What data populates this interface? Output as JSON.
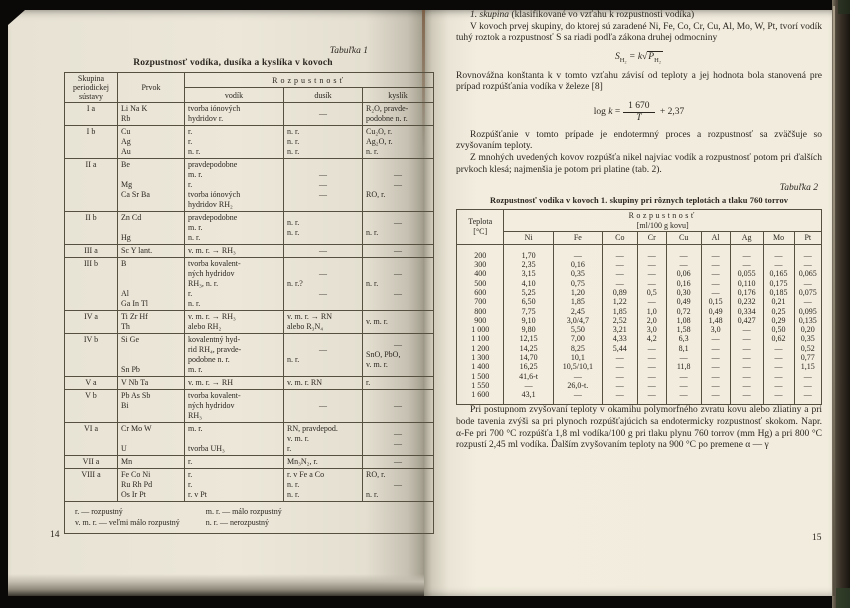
{
  "colors": {
    "paper": "#ece7d9",
    "ink": "#2b2620",
    "frame": "#0a0908"
  },
  "book": {
    "left_page": {
      "table_label": "Tabuľka 1",
      "title": "Rozpustnosť vodíka, dusíka a kyslíka v kovoch",
      "table1": {
        "header_group": "Skupina periodickej sústavy",
        "header_element": "Prvok",
        "header_solubility": "Rozpustnosť",
        "subheaders": [
          "vodík",
          "dusík",
          "kyslík"
        ],
        "rows": [
          {
            "group": "I a",
            "prvok": [
              "Li Na K",
              "Rb"
            ],
            "vodik": [
              "tvorba iónových",
              "hydridov r."
            ],
            "dusik": [
              "—"
            ],
            "kyslik": [
              "R₂O, pravde-",
              "podobne n. r."
            ]
          },
          {
            "group": "I b",
            "prvok": [
              "Cu",
              "Ag",
              "Au"
            ],
            "vodik": [
              "r.",
              "r.",
              "n. r."
            ],
            "dusik": [
              "n. r.",
              "n. r.",
              "n. r."
            ],
            "kyslik": [
              "Cu₂O, r.",
              "Ag₂O, r.",
              "n. r."
            ]
          },
          {
            "group": "II a",
            "prvok": [
              "Be",
              "",
              "Mg",
              "Ca Sr Ba"
            ],
            "vodik": [
              "pravdepodobne",
              "m. r.",
              "r.",
              "tvorba iónových",
              "hydridov RH₂"
            ],
            "dusik": [
              "—",
              "—",
              "—"
            ],
            "kyslik": [
              "—",
              "—",
              "RO, r."
            ]
          },
          {
            "group": "II b",
            "prvok": [
              "Zn Cd",
              "",
              "Hg"
            ],
            "vodik": [
              "pravdepodobne",
              "m. r.",
              "n. r."
            ],
            "dusik": [
              "n. r.",
              "n. r."
            ],
            "kyslik": [
              "—",
              "n. r."
            ]
          },
          {
            "group": "III a",
            "prvok": [
              "Sc Y lant."
            ],
            "vodik": [
              "v. m. r. → RH₃"
            ],
            "dusik": [
              "—"
            ],
            "kyslik": [
              "—"
            ]
          },
          {
            "group": "III b",
            "prvok": [
              "B",
              "",
              "",
              "Al",
              "Ga In Tl"
            ],
            "vodik": [
              "tvorba kovalent-",
              "ných hydridov",
              "RH₃, n. r.",
              "r.",
              "n. r."
            ],
            "dusik": [
              "—",
              "n. r.?",
              "—"
            ],
            "kyslik": [
              "—",
              "n. r.",
              "—"
            ]
          },
          {
            "group": "IV a",
            "prvok": [
              "Ti Zr Hf",
              "Th"
            ],
            "vodik": [
              "v. m. r. → RH₃",
              "alebo RH₂"
            ],
            "dusik": [
              "v. m. r. → RN",
              "alebo R₃N₄"
            ],
            "kyslik": [
              "v. m. r."
            ]
          },
          {
            "group": "IV b",
            "prvok": [
              "Si Ge",
              "",
              "",
              "Sn Pb"
            ],
            "vodik": [
              "kovalentný hyd-",
              "rid RH₄, pravde-",
              "podobne n. r.",
              "m. r."
            ],
            "dusik": [
              "—",
              "n. r."
            ],
            "kyslik": [
              "—",
              "SnO, PbO,",
              "v. m. r."
            ]
          },
          {
            "group": "V a",
            "prvok": [
              "V Nb Ta"
            ],
            "vodik": [
              "v. m. r. → RH"
            ],
            "dusik": [
              "v. m. r. RN"
            ],
            "kyslik": [
              "r."
            ]
          },
          {
            "group": "V b",
            "prvok": [
              "Pb As Sb",
              "Bi"
            ],
            "vodik": [
              "tvorba kovalent-",
              "ných hydridov",
              "RH₃"
            ],
            "dusik": [
              "—"
            ],
            "kyslik": [
              "—"
            ]
          },
          {
            "group": "VI a",
            "prvok": [
              "Cr Mo W",
              "",
              "U"
            ],
            "vodik": [
              "m. r.",
              "",
              "tvorba UH₃"
            ],
            "dusik": [
              "RN, pravdepod.",
              "v. m. r.",
              "r."
            ],
            "kyslik": [
              "—",
              "—"
            ]
          },
          {
            "group": "VII a",
            "prvok": [
              "Mn"
            ],
            "vodik": [
              "r."
            ],
            "dusik": [
              "Mn₃N₂, r."
            ],
            "kyslik": [
              "—"
            ]
          },
          {
            "group": "VIII a",
            "prvok": [
              "Fe Co Ni",
              "Ru Rh Pd",
              "Os Ir Pt"
            ],
            "vodik": [
              "r.",
              "r.",
              "r. v Pt"
            ],
            "dusik": [
              "r. v Fe a Co",
              "n. r.",
              "n. r."
            ],
            "kyslik": [
              "RO, r.",
              "—",
              "n. r."
            ]
          }
        ],
        "legend_col1": [
          "r. — rozpustný",
          "v. m. r. — veľmi málo rozpustný"
        ],
        "legend_col2": [
          "m. r. — málo rozpustný",
          "n. r. — nerozpustný"
        ]
      },
      "page_number": "14"
    },
    "right_page": {
      "heading_italic": "1. skupina",
      "heading_rest": " (klasifikované vo vzťahu k rozpustnosti vodíka)",
      "para1": "V kovoch prvej skupiny, do ktorej sú zaradené Ni, Fe, Co, Cr, Cu, Al, Mo, W, Pt, tvorí vodík tuhý roztok a rozpustnosť S sa riadi podľa zákona druhej odmocniny",
      "formula1": {
        "lhs": "S",
        "lhs_sub": "H₂",
        "eq": "= k",
        "radical": "√",
        "radicand": "P",
        "radicand_sub": "H₂"
      },
      "para2": "Rovnovážna konštanta k v tomto vzťahu závisí od teploty a jej hodnota bola stanovená pre prípad rozpúšťania vodíka v železe [8]",
      "formula2": {
        "prefix": "log",
        "var": "k",
        "eq": "=",
        "numerator": "1 670",
        "denominator": "T",
        "suffix": "+ 2,37"
      },
      "para3": "Rozpúšťanie v tomto prípade je endotermný proces a rozpustnosť sa zväčšuje so zvyšovaním teploty.",
      "para4": "Z mnohých uvedených kovov rozpúšťa nikel najviac vodík a rozpustnosť potom pri ďalších prvkoch klesá; najmenšia je potom pri platine (tab. 2).",
      "table_label": "Tabuľka 2",
      "table2_title": "Rozpustnosť vodíka v kovoch 1. skupiny pri rôznych teplotách a tlaku 760 torrov",
      "table2": {
        "temp_header": "Teplota",
        "temp_unit": "[°C]",
        "solubility_header": "Rozpustnosť",
        "solubility_unit": "[ml/100 g kovu]",
        "metals": [
          "Ni",
          "Fe",
          "Co",
          "Cr",
          "Cu",
          "Al",
          "Ag",
          "Mo",
          "Pt"
        ],
        "rows": [
          [
            "200",
            "1,70",
            "—",
            "—",
            "—",
            "—",
            "—",
            "—",
            "—",
            "—"
          ],
          [
            "300",
            "2,35",
            "0,16",
            "—",
            "—",
            "—",
            "—",
            "—",
            "—",
            "—"
          ],
          [
            "400",
            "3,15",
            "0,35",
            "—",
            "—",
            "0,06",
            "—",
            "0,055",
            "0,165",
            "0,065"
          ],
          [
            "500",
            "4,10",
            "0,75",
            "—",
            "—",
            "0,16",
            "—",
            "0,110",
            "0,175",
            "—"
          ],
          [
            "600",
            "5,25",
            "1,20",
            "0,89",
            "0,5",
            "0,30",
            "—",
            "0,176",
            "0,185",
            "0,075"
          ],
          [
            "700",
            "6,50",
            "1,85",
            "1,22",
            "—",
            "0,49",
            "0,15",
            "0,232",
            "0,21",
            "—"
          ],
          [
            "800",
            "7,75",
            "2,45",
            "1,85",
            "1,0",
            "0,72",
            "0,49",
            "0,334",
            "0,25",
            "0,095"
          ],
          [
            "900",
            "9,10",
            "3,0/4,7",
            "2,52",
            "2,0",
            "1,08",
            "1,48",
            "0,427",
            "0,29",
            "0,135"
          ],
          [
            "1 000",
            "9,80",
            "5,50",
            "3,21",
            "3,0",
            "1,58",
            "3,0",
            "—",
            "0,50",
            "0,20"
          ],
          [
            "1 100",
            "12,15",
            "7,00",
            "4,33",
            "4,2",
            "6,3",
            "—",
            "—",
            "0,62",
            "0,35"
          ],
          [
            "1 200",
            "14,25",
            "8,25",
            "5,44",
            "—",
            "8,1",
            "—",
            "—",
            "—",
            "0,52"
          ],
          [
            "1 300",
            "14,70",
            "10,1",
            "—",
            "—",
            "—",
            "—",
            "—",
            "—",
            "0,77"
          ],
          [
            "1 400",
            "16,25",
            "10,5/10,1",
            "—",
            "—",
            "11,8",
            "—",
            "—",
            "—",
            "1,15"
          ],
          [
            "1 500",
            "41,6-t",
            "—",
            "—",
            "—",
            "—",
            "—",
            "—",
            "—",
            "—"
          ],
          [
            "1 550",
            "—",
            "26,0-t.",
            "—",
            "—",
            "—",
            "—",
            "—",
            "—",
            "—"
          ],
          [
            "1 600",
            "43,1",
            "—",
            "—",
            "—",
            "—",
            "—",
            "—",
            "—",
            "—"
          ]
        ]
      },
      "para5": "Pri postupnom zvyšovaní teploty v okamihu polymorfného zvratu kovu alebo zliatiny a pri bode tavenia zvýši sa pri plynoch rozpúšťajúcich sa endotermicky rozpustnosť skokom. Napr. α-Fe pri 700 °C rozpúšťa 1,8 ml vodíka/100 g pri tlaku plynu 760 torrov (mm Hg) a pri 800 °C rozpustí 2,45 ml vodíka. Ďalším zvyšovaním teploty na 900 °C po premene α — γ",
      "page_number": "15"
    }
  }
}
